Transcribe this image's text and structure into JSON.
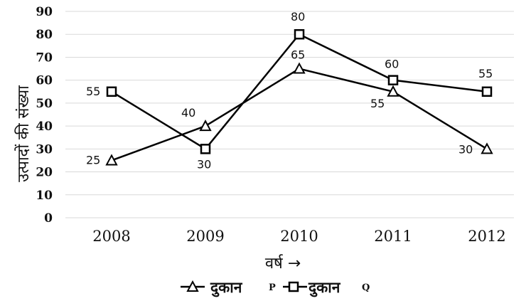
{
  "chart_data": {
    "type": "line",
    "categories": [
      "2008",
      "2009",
      "2010",
      "2011",
      "2012"
    ],
    "series": [
      {
        "name": "दुकान P",
        "legend_text": "दुकान",
        "legend_tag": "P",
        "marker": "triangle",
        "color": "#000000",
        "values": [
          25,
          40,
          65,
          55,
          30
        ]
      },
      {
        "name": "दुकान Q",
        "legend_text": "दुकान",
        "legend_tag": "Q",
        "marker": "square",
        "color": "#000000",
        "values": [
          55,
          30,
          80,
          60,
          55
        ]
      }
    ],
    "xlabel": "वर्ष →",
    "ylabel": "उत्पादों की संख्या",
    "ylim": [
      0,
      90
    ],
    "yticks": [
      0,
      10,
      20,
      30,
      40,
      50,
      60,
      70,
      80,
      90
    ],
    "grid": true,
    "legend_position": "bottom"
  }
}
